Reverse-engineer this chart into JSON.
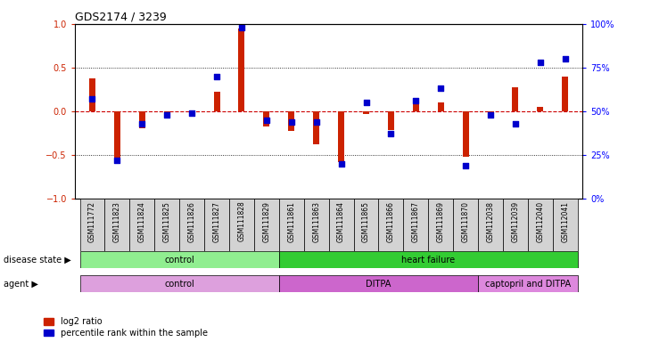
{
  "title": "GDS2174 / 3239",
  "samples": [
    "GSM111772",
    "GSM111823",
    "GSM111824",
    "GSM111825",
    "GSM111826",
    "GSM111827",
    "GSM111828",
    "GSM111829",
    "GSM111861",
    "GSM111863",
    "GSM111864",
    "GSM111865",
    "GSM111866",
    "GSM111867",
    "GSM111869",
    "GSM111870",
    "GSM112038",
    "GSM112039",
    "GSM112040",
    "GSM112041"
  ],
  "log2_ratio": [
    0.38,
    -0.57,
    -0.2,
    -0.05,
    -0.05,
    0.22,
    0.95,
    -0.18,
    -0.23,
    -0.38,
    -0.58,
    -0.03,
    -0.22,
    0.1,
    0.1,
    -0.52,
    -0.05,
    0.27,
    0.05,
    0.4
  ],
  "percentile_rank": [
    57,
    22,
    43,
    48,
    49,
    70,
    98,
    45,
    44,
    44,
    20,
    55,
    37,
    56,
    63,
    19,
    48,
    43,
    78,
    80
  ],
  "disease_state_groups": [
    {
      "label": "control",
      "start": 0,
      "end": 8,
      "color": "#90EE90"
    },
    {
      "label": "heart failure",
      "start": 8,
      "end": 20,
      "color": "#33CC33"
    }
  ],
  "agent_groups": [
    {
      "label": "control",
      "start": 0,
      "end": 8,
      "color": "#DDA0DD"
    },
    {
      "label": "DITPA",
      "start": 8,
      "end": 16,
      "color": "#CC66CC"
    },
    {
      "label": "captopril and DITPA",
      "start": 16,
      "end": 20,
      "color": "#DD88DD"
    }
  ],
  "bar_color_red": "#CC2200",
  "bar_color_blue": "#0000CC",
  "zero_line_color": "#CC0000",
  "grid_line_color": "#000000",
  "background_color": "#FFFFFF",
  "ylim": [
    -1,
    1
  ],
  "y2lim": [
    0,
    100
  ],
  "yticks_left": [
    -1,
    -0.5,
    0,
    0.5,
    1
  ],
  "yticks_right": [
    0,
    25,
    50,
    75,
    100
  ],
  "legend_items": [
    "log2 ratio",
    "percentile rank within the sample"
  ]
}
